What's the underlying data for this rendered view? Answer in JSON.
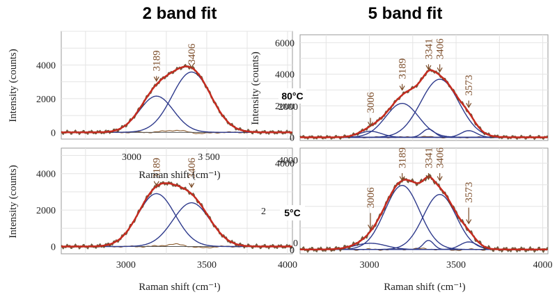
{
  "headings": {
    "left": "2 band fit",
    "right": "5 band fit"
  },
  "temperatures": {
    "top": "80°C",
    "bottom": "5°C"
  },
  "colors": {
    "fit": "#c62a1f",
    "component": "#2e3a8c",
    "residual": "#8a5a2b",
    "peak_label": "#7a4a26",
    "data": "#5a4020"
  },
  "chart_data": [
    {
      "id": "p1",
      "type": "line",
      "title": "2 band fit",
      "condition": "80°C",
      "xlabel": "Raman shift (cm⁻¹)",
      "ylabel": "Intensity (counts)",
      "xlim": [
        2600,
        4030
      ],
      "ylim": [
        -400,
        6000
      ],
      "xticks": [],
      "yticks": [
        0,
        2000,
        4000
      ],
      "inner_xticks": [
        "3000",
        "3 500"
      ],
      "bands": [
        {
          "center": 3189,
          "height": 2150,
          "width": 105
        },
        {
          "center": 3406,
          "height": 3580,
          "width": 120
        }
      ],
      "peak_labels": [
        {
          "text": "3189",
          "x": 3189,
          "y_text": 4250,
          "y_arrow": 3050
        },
        {
          "text": "3406",
          "x": 3406,
          "y_text": 4650,
          "y_arrow": 3850
        }
      ]
    },
    {
      "id": "p2",
      "type": "line",
      "title": "5 band fit",
      "condition": "80°C",
      "xlabel": "",
      "ylabel": "Intensity (counts)",
      "xlim": [
        2600,
        4030
      ],
      "ylim": [
        -200,
        6500
      ],
      "xticks": [],
      "yticks": [
        0,
        2000,
        4000,
        6000
      ],
      "bands": [
        {
          "center": 3006,
          "height": 380,
          "width": 65
        },
        {
          "center": 3189,
          "height": 2150,
          "width": 95
        },
        {
          "center": 3341,
          "height": 520,
          "width": 35
        },
        {
          "center": 3406,
          "height": 3680,
          "width": 110
        },
        {
          "center": 3573,
          "height": 420,
          "width": 45
        }
      ],
      "peak_labels": [
        {
          "text": "3006",
          "x": 3006,
          "y_text": 2200,
          "y_arrow": 700
        },
        {
          "text": "3189",
          "x": 3189,
          "y_text": 4350,
          "y_arrow": 3000
        },
        {
          "text": "3341",
          "x": 3341,
          "y_text": 5600,
          "y_arrow": 4300
        },
        {
          "text": "3406",
          "x": 3406,
          "y_text": 5600,
          "y_arrow": 4150
        },
        {
          "text": "3573",
          "x": 3573,
          "y_text": 3300,
          "y_arrow": 1900
        }
      ]
    },
    {
      "id": "p3",
      "type": "line",
      "title": "2 band fit",
      "condition": "5°C",
      "xlabel": "Raman shift (cm⁻¹)",
      "ylabel": "Intensity (counts)",
      "xlim": [
        2600,
        4030
      ],
      "ylim": [
        -400,
        5400
      ],
      "xticks": [
        3000,
        3500,
        4000
      ],
      "yticks": [
        0,
        2000,
        4000
      ],
      "bands": [
        {
          "center": 3189,
          "height": 2900,
          "width": 115
        },
        {
          "center": 3406,
          "height": 2400,
          "width": 115
        }
      ],
      "peak_labels": [
        {
          "text": "3189",
          "x": 3189,
          "y_text": 4300,
          "y_arrow": 3350
        },
        {
          "text": "3406",
          "x": 3406,
          "y_text": 4300,
          "y_arrow": 3250
        }
      ]
    },
    {
      "id": "p4",
      "type": "line",
      "title": "5 band fit",
      "condition": "5°C",
      "xlabel": "Raman shift (cm⁻¹)",
      "ylabel": "",
      "xlim": [
        2600,
        4030
      ],
      "ylim": [
        -200,
        4700
      ],
      "xticks": [
        3000,
        3500,
        4000
      ],
      "yticks": [
        0,
        4000
      ],
      "bands": [
        {
          "center": 3006,
          "height": 290,
          "width": 90
        },
        {
          "center": 3189,
          "height": 2970,
          "width": 100
        },
        {
          "center": 3341,
          "height": 420,
          "width": 30
        },
        {
          "center": 3406,
          "height": 2550,
          "width": 95
        },
        {
          "center": 3573,
          "height": 350,
          "width": 50
        }
      ],
      "peak_labels": [
        {
          "text": "3006",
          "x": 3006,
          "y_text": 2400,
          "y_arrow": 950
        },
        {
          "text": "3189",
          "x": 3189,
          "y_text": 4250,
          "y_arrow": 3200
        },
        {
          "text": "3341",
          "x": 3341,
          "y_text": 4250,
          "y_arrow": 3250
        },
        {
          "text": "3406",
          "x": 3406,
          "y_text": 4250,
          "y_arrow": 3200
        },
        {
          "text": "3573",
          "x": 3573,
          "y_text": 2650,
          "y_arrow": 1200
        }
      ]
    }
  ],
  "overlays": {
    "inner_xlabel": "Raman shift (cm⁻¹)",
    "p2_y_remnant": "2000",
    "p4_y_remnant_top": "4000",
    "p4_y_remnant_mid": "2",
    "p4_y_remnant_zero": "0"
  }
}
